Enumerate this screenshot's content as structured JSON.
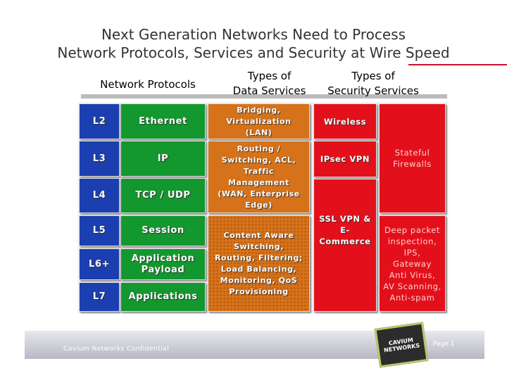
{
  "title": {
    "lines": [
      "Next Generation Networks Need to Process",
      "Network Protocols, Services and Security at Wire Speed"
    ]
  },
  "headers": [
    {
      "lines": [
        "Network Protocols"
      ]
    },
    {
      "lines": [
        "Types of",
        "Data Services"
      ]
    },
    {
      "lines": [
        "Types of",
        "Security Services"
      ]
    }
  ],
  "layers": [
    {
      "level": "L2",
      "protocol": "Ethernet"
    },
    {
      "level": "L3",
      "protocol": "IP"
    },
    {
      "level": "L4",
      "protocol": "TCP / UDP"
    },
    {
      "level": "L5",
      "protocol": "Session"
    },
    {
      "level": "L6+",
      "protocol": [
        "Application",
        "Payload"
      ]
    },
    {
      "level": "L7",
      "protocol": "Applications"
    }
  ],
  "data_services": [
    {
      "lines": [
        "Bridging,",
        "Virtualization",
        "(LAN)"
      ]
    },
    {
      "lines": [
        "Routing /",
        "Switching, ACL,",
        "Traffic",
        "Management",
        "(WAN, Enterprise",
        "Edge)"
      ]
    },
    {
      "lines": [
        "Content Aware",
        "Switching,",
        "Routing, Filtering;",
        "Load Balancing,",
        "Monitoring, QoS",
        "Provisioning"
      ]
    }
  ],
  "security_services": [
    {
      "lines": [
        "Wireless"
      ]
    },
    {
      "lines": [
        "IPsec VPN"
      ]
    },
    {
      "lines": [
        "SSL VPN &",
        "E-",
        "Commerce"
      ]
    },
    {
      "lines": [
        "Stateful",
        "Firewalls"
      ]
    },
    {
      "lines": [
        "Deep packet",
        "inspection,",
        "IPS,",
        "Gateway",
        "Anti Virus,",
        "AV Scanning,",
        "Anti-spam"
      ]
    }
  ],
  "footer": {
    "confidential": "Cavium Networks Confidential",
    "page": "Page 1",
    "logo": [
      "CAVIUM",
      "NETWORKS"
    ]
  }
}
